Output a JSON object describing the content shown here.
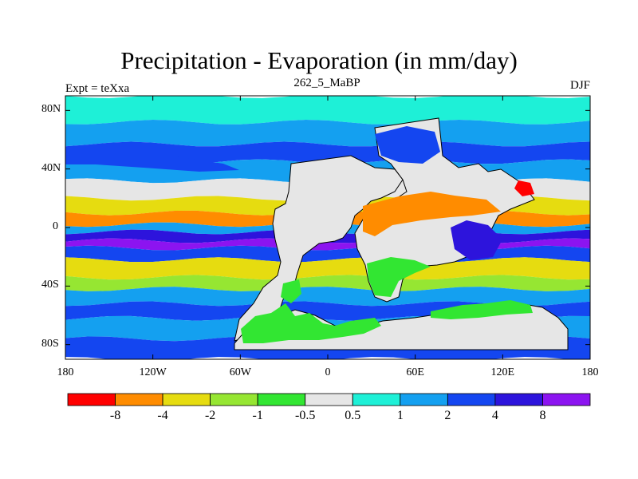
{
  "title": "Precipitation - Evaporation (in mm/day)",
  "left_string": "Expt = teXxa",
  "center_string": "262_5_MaBP",
  "right_string": "DJF",
  "map": {
    "lon_ticks": [
      "180",
      "120W",
      "60W",
      "0",
      "60E",
      "120E",
      "180"
    ],
    "lat_ticks": [
      "80N",
      "40N",
      "0",
      "40S",
      "80S"
    ],
    "lon_values": [
      -180,
      -120,
      -60,
      0,
      60,
      120,
      180
    ],
    "lat_values": [
      80,
      40,
      0,
      -40,
      -80
    ],
    "lon_range": [
      -180,
      180
    ],
    "lat_range": [
      -90,
      90
    ],
    "field_bands": [
      {
        "lat": [
          72,
          90
        ],
        "level": "0.5"
      },
      {
        "lat": [
          57,
          72
        ],
        "level": "1"
      },
      {
        "lat": [
          45,
          57
        ],
        "level": "2"
      },
      {
        "lat": [
          32,
          45
        ],
        "level": "1"
      },
      {
        "lat": [
          20,
          32
        ],
        "level": "-0.5"
      },
      {
        "lat": [
          10,
          20
        ],
        "level": "-2"
      },
      {
        "lat": [
          2,
          10
        ],
        "level": "-4"
      },
      {
        "lat": [
          -3,
          2
        ],
        "level": "1"
      },
      {
        "lat": [
          -9,
          -3
        ],
        "level": "4"
      },
      {
        "lat": [
          -14,
          -9
        ],
        "level": "8"
      },
      {
        "lat": [
          -22,
          -14
        ],
        "level": "2"
      },
      {
        "lat": [
          -34,
          -22
        ],
        "level": "-2"
      },
      {
        "lat": [
          -42,
          -34
        ],
        "level": "-1"
      },
      {
        "lat": [
          -52,
          -42
        ],
        "level": "1"
      },
      {
        "lat": [
          -62,
          -52
        ],
        "level": "2"
      },
      {
        "lat": [
          -76,
          -62
        ],
        "level": "1"
      },
      {
        "lat": [
          -90,
          -76
        ],
        "level": "2"
      }
    ]
  },
  "colorbar": {
    "colors": [
      "#ff0000",
      "#ff8c00",
      "#e6dc10",
      "#96e632",
      "#32e632",
      "#e6e6e6",
      "#1ef0d7",
      "#14a0f0",
      "#1446f0",
      "#2d14dc",
      "#8c14f0"
    ],
    "labels": [
      "-8",
      "-4",
      "-2",
      "-1",
      "-0.5",
      "0.5",
      "1",
      "2",
      "4",
      "8"
    ]
  }
}
